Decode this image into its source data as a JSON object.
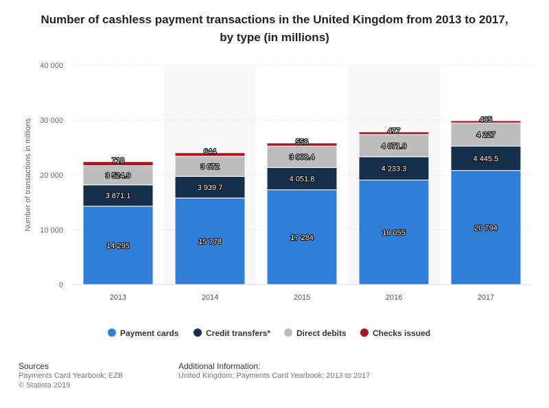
{
  "title_line1": "Number of cashless payment transactions in the United Kingdom from 2013 to 2017,",
  "title_line2": "by type (in millions)",
  "chart_data": {
    "type": "bar",
    "stacked": true,
    "categories": [
      "2013",
      "2014",
      "2015",
      "2016",
      "2017"
    ],
    "series": [
      {
        "name": "Payment cards",
        "color": "#2f7ed8",
        "values": [
          14295,
          15778,
          17284,
          19055,
          20794
        ],
        "labels": [
          "14 295",
          "15 778",
          "17 284",
          "19 055",
          "20 794"
        ]
      },
      {
        "name": "Credit transfers*",
        "color": "#162f4a",
        "values": [
          3871.1,
          3939.7,
          4051.8,
          4233.3,
          4445.5
        ],
        "labels": [
          "3 871.1",
          "3 939.7",
          "4 051.8",
          "4 233.3",
          "4 445.5"
        ]
      },
      {
        "name": "Direct debits",
        "color": "#bdbdbd",
        "values": [
          3524.9,
          3672,
          3908.4,
          4071.9,
          4227
        ],
        "labels": [
          "3 524.9",
          "3 672",
          "3 908.4",
          "4 071.9",
          "4 227"
        ]
      },
      {
        "name": "Checks issued",
        "color": "#b0141c",
        "values": [
          718,
          644,
          558,
          477,
          405
        ],
        "labels": [
          "718",
          "644",
          "558",
          "477",
          "405"
        ]
      }
    ],
    "ylabel": "Number of transactions in millions",
    "ylim": [
      0,
      40000
    ],
    "yticks": [
      0,
      10000,
      20000,
      30000,
      40000
    ],
    "ytick_labels": [
      "0",
      "10 000",
      "20 000",
      "30 000",
      "40 000"
    ],
    "grid": true,
    "legend_position": "bottom"
  },
  "footer": {
    "sources_heading": "Sources",
    "sources_line1": "Payments Card Yearbook; EZB",
    "sources_line2": "© Statista 2019",
    "additional_heading": "Additional Information:",
    "additional_line1": "United Kingdom; Payments Card Yearbook; 2013 to 2017"
  }
}
